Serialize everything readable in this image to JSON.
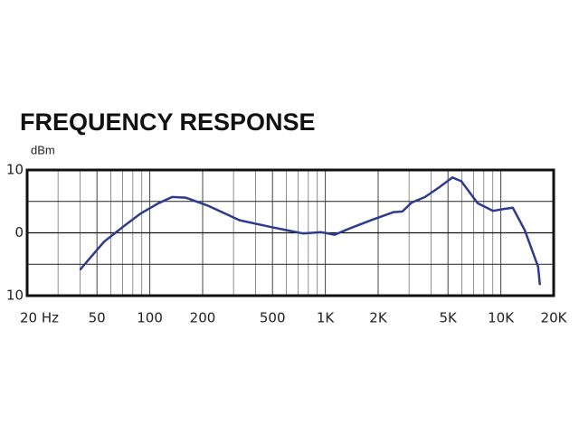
{
  "chart_data": {
    "type": "line",
    "title": "FREQUENCY RESPONSE",
    "y_label": "dBm",
    "x_scale": "log",
    "grid": true,
    "xlim": [
      20,
      20000
    ],
    "xticks": [
      {
        "value": 20,
        "label": "20 Hz"
      },
      50,
      100,
      200,
      500,
      {
        "value": 1000,
        "label": "1K"
      },
      {
        "value": 2000,
        "label": "2K"
      },
      {
        "value": 5000,
        "label": "5K"
      },
      {
        "value": 10000,
        "label": "10K"
      },
      {
        "value": 20000,
        "label": "20K"
      }
    ],
    "minor_xticks": [
      30,
      40,
      60,
      70,
      80,
      90,
      300,
      400,
      600,
      700,
      800,
      900,
      3000,
      4000,
      6000,
      7000,
      8000,
      9000
    ],
    "ylim": [
      -10,
      10
    ],
    "yticks": [
      {
        "value": -10,
        "label": "10"
      },
      0,
      10
    ],
    "minor_yticks": [
      -5,
      5
    ],
    "series": [
      {
        "color": "#2e3a8c",
        "x": [
          40,
          46,
          55,
          70,
          88,
          112,
          134,
          160,
          215,
          325,
          493,
          746,
          947,
          1130,
          1350,
          1820,
          2450,
          2750,
          3100,
          3700,
          4430,
          5300,
          5960,
          7380,
          9030,
          10400,
          11700,
          13700,
          16300,
          16700
        ],
        "values": [
          -5.9,
          -3.9,
          -1.4,
          0.9,
          3.0,
          4.7,
          5.7,
          5.6,
          4.3,
          2.0,
          0.9,
          -0.1,
          0.1,
          -0.3,
          0.6,
          2.0,
          3.3,
          3.4,
          4.8,
          5.7,
          7.2,
          8.8,
          8.2,
          4.7,
          3.5,
          3.8,
          4.0,
          0.4,
          -5.4,
          -8.3
        ]
      }
    ]
  }
}
